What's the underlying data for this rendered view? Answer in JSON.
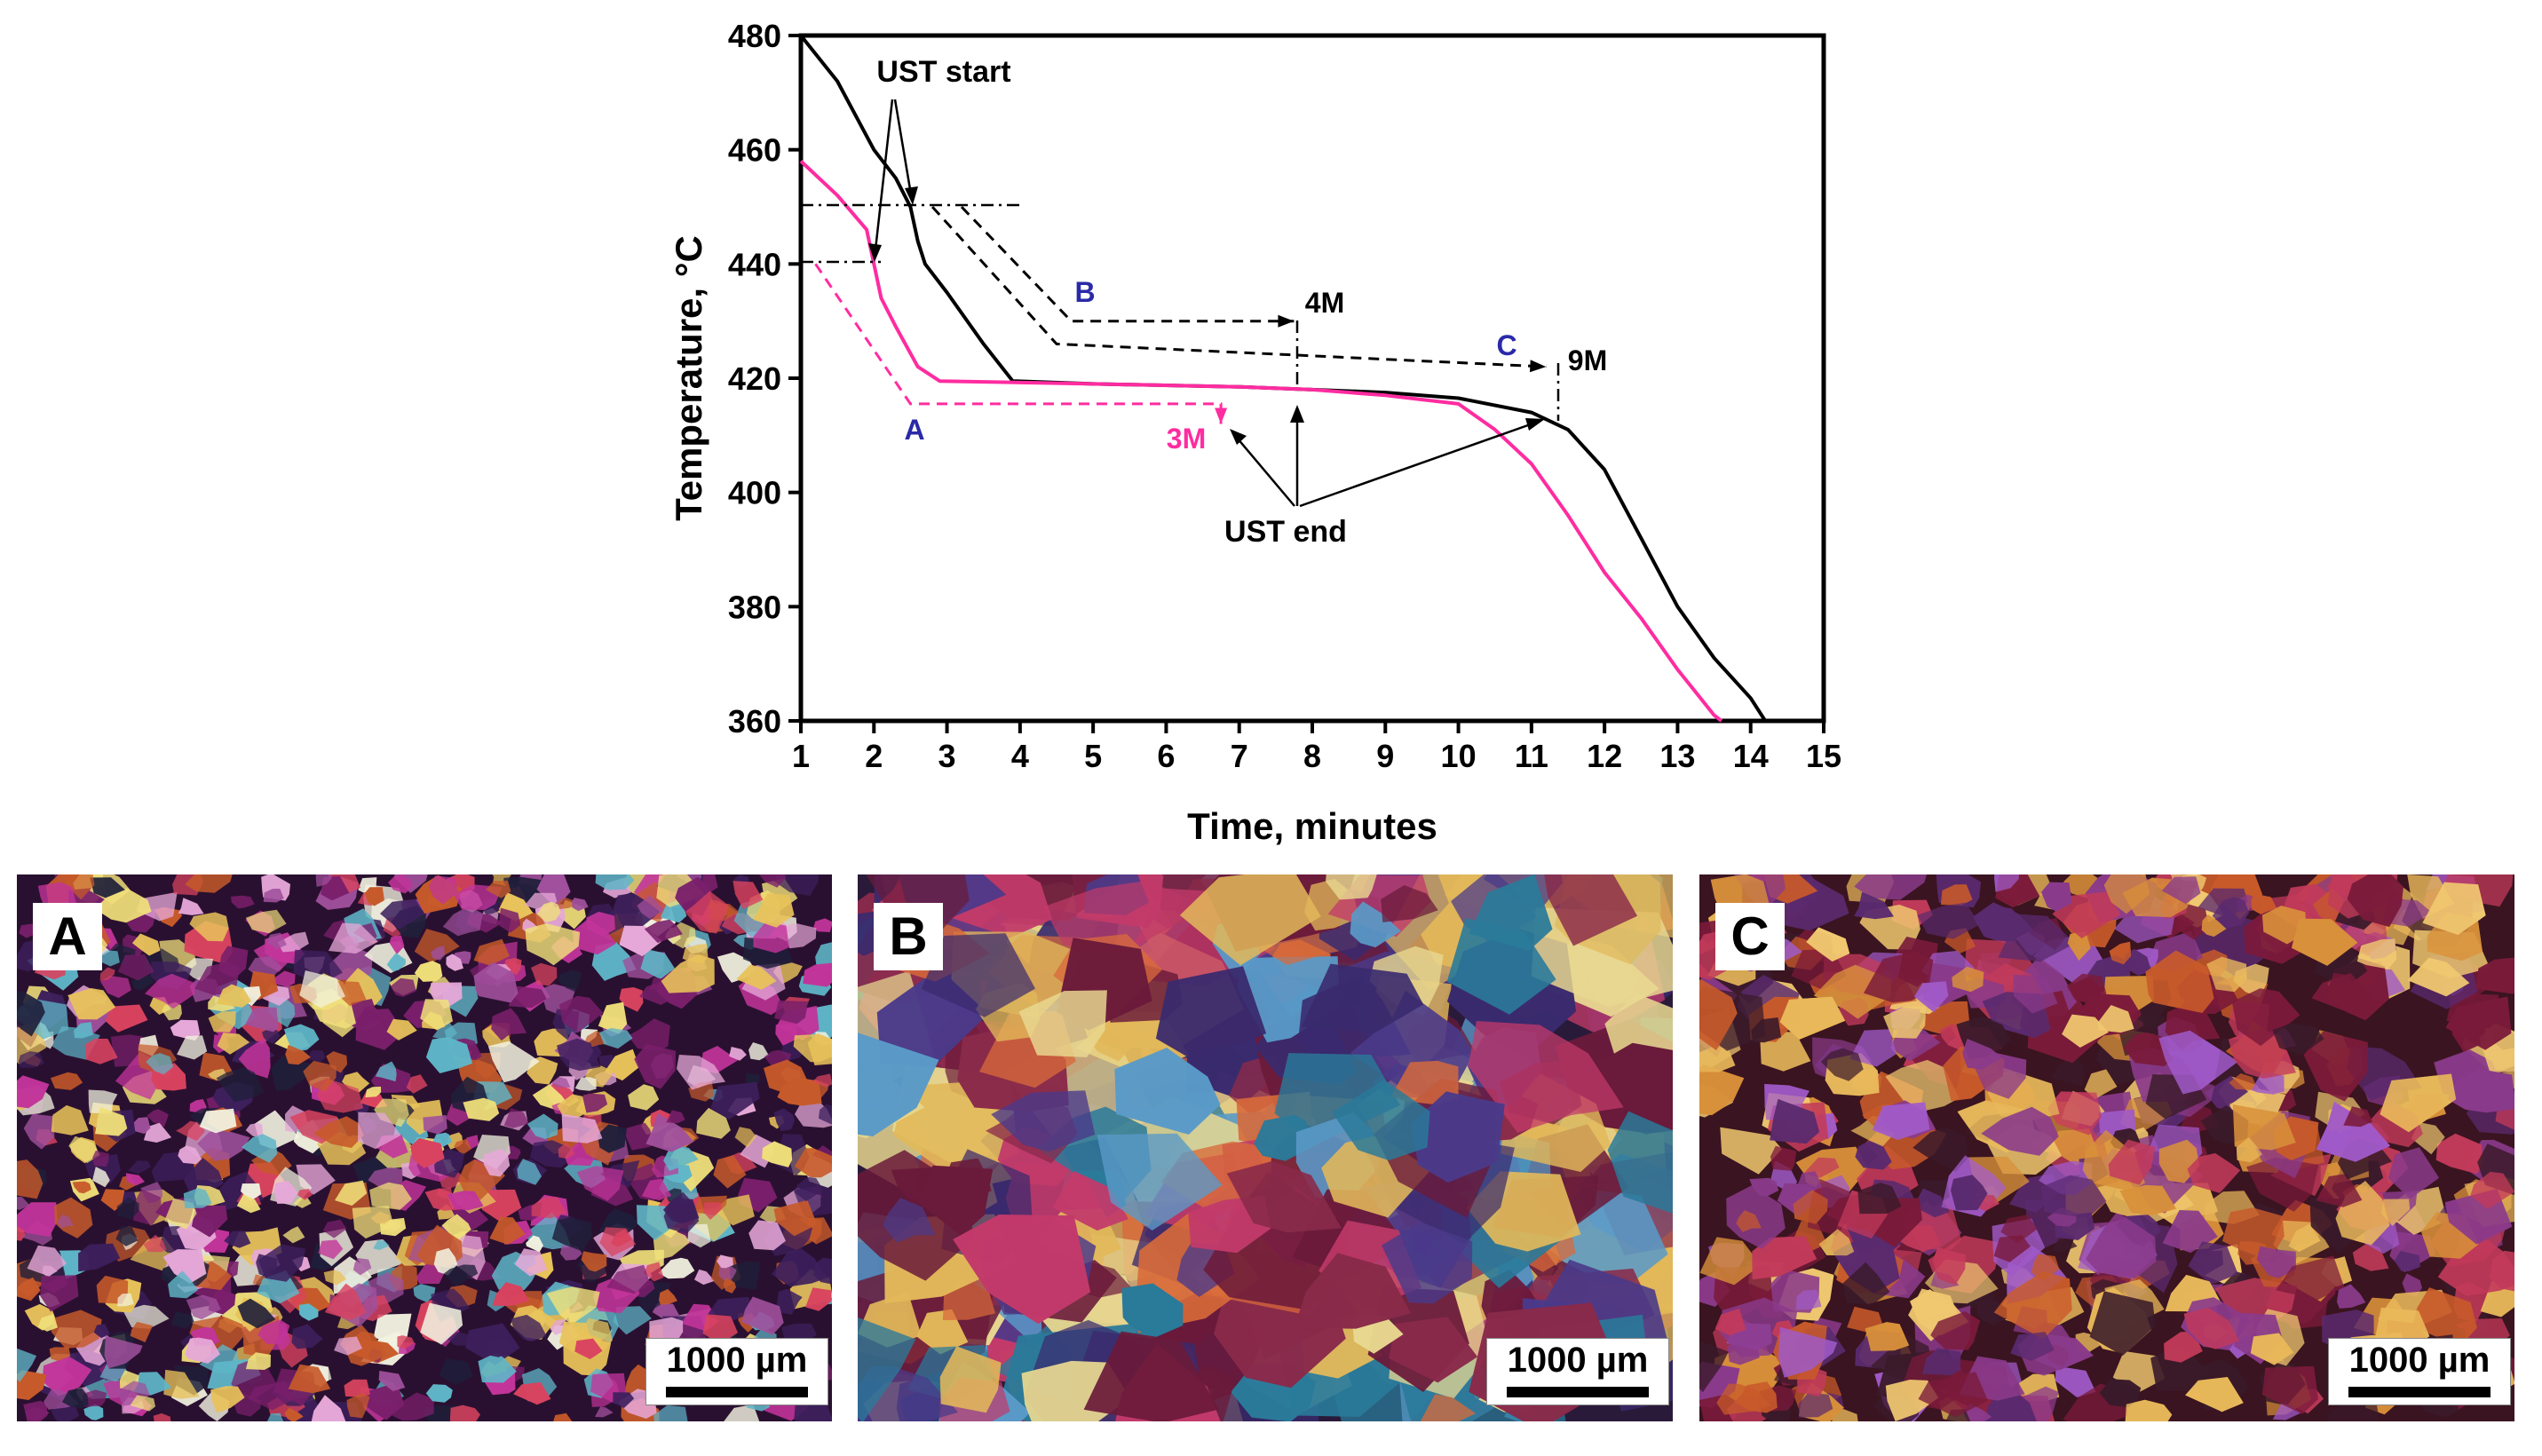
{
  "chart_data": {
    "type": "line",
    "xlabel": "Time, minutes",
    "ylabel": "Temperature, °C",
    "xlim": [
      1,
      15
    ],
    "ylim": [
      360,
      480
    ],
    "xticks": [
      1,
      2,
      3,
      4,
      5,
      6,
      7,
      8,
      9,
      10,
      11,
      12,
      13,
      14,
      15
    ],
    "yticks": [
      360,
      380,
      400,
      420,
      440,
      460,
      480
    ],
    "grid": false,
    "series": [
      {
        "name": "black cooling curve",
        "color": "#000000",
        "points": [
          [
            1,
            480
          ],
          [
            1.5,
            472
          ],
          [
            2,
            460
          ],
          [
            2.3,
            455
          ],
          [
            2.5,
            450
          ],
          [
            2.6,
            444
          ],
          [
            2.7,
            440
          ],
          [
            3,
            435
          ],
          [
            3.5,
            426
          ],
          [
            3.9,
            419.5
          ],
          [
            5,
            419
          ],
          [
            7,
            418.5
          ],
          [
            8,
            418
          ],
          [
            9,
            417.5
          ],
          [
            10,
            416.5
          ],
          [
            11,
            414
          ],
          [
            11.5,
            411
          ],
          [
            12,
            404
          ],
          [
            12.5,
            392
          ],
          [
            13,
            380
          ],
          [
            13.5,
            371
          ],
          [
            14,
            364
          ],
          [
            14.2,
            360
          ]
        ]
      },
      {
        "name": "pink cooling curve",
        "color": "#ff2ca0",
        "points": [
          [
            1,
            458
          ],
          [
            1.5,
            452
          ],
          [
            1.9,
            446
          ],
          [
            2,
            440
          ],
          [
            2.1,
            434
          ],
          [
            2.3,
            429
          ],
          [
            2.6,
            422
          ],
          [
            2.9,
            419.5
          ],
          [
            5,
            419
          ],
          [
            7,
            418.5
          ],
          [
            8,
            418
          ],
          [
            9,
            417
          ],
          [
            10,
            415.5
          ],
          [
            10.5,
            411
          ],
          [
            11,
            405
          ],
          [
            11.5,
            396
          ],
          [
            12,
            386
          ],
          [
            12.5,
            378
          ],
          [
            13,
            369
          ],
          [
            13.5,
            361
          ],
          [
            13.6,
            360
          ]
        ]
      }
    ],
    "ust_paths": [
      {
        "label": "A",
        "end_label": "3M",
        "color": "#ff2ca0",
        "points": [
          [
            1.2,
            440
          ],
          [
            2.5,
            415.5
          ],
          [
            6.75,
            415.5
          ],
          [
            6.75,
            412
          ]
        ]
      },
      {
        "label": "B",
        "end_label": "4M",
        "color": "#000000",
        "points": [
          [
            3.2,
            450
          ],
          [
            4.7,
            430
          ],
          [
            7.75,
            430
          ]
        ]
      },
      {
        "label": "C",
        "end_label": "9M",
        "color": "#000000",
        "points": [
          [
            2.8,
            450
          ],
          [
            4.5,
            426
          ],
          [
            11.2,
            422
          ]
        ]
      }
    ],
    "annotations": {
      "ust_start": "UST start",
      "ust_end": "UST end"
    }
  },
  "panels": [
    {
      "letter": "A",
      "scale_bar": "1000 µm"
    },
    {
      "letter": "B",
      "scale_bar": "1000 µm"
    },
    {
      "letter": "C",
      "scale_bar": "1000 µm"
    }
  ],
  "colors": {
    "axis": "#000000",
    "pink": "#ff2ca0",
    "blue_label": "#2a2aa8"
  }
}
